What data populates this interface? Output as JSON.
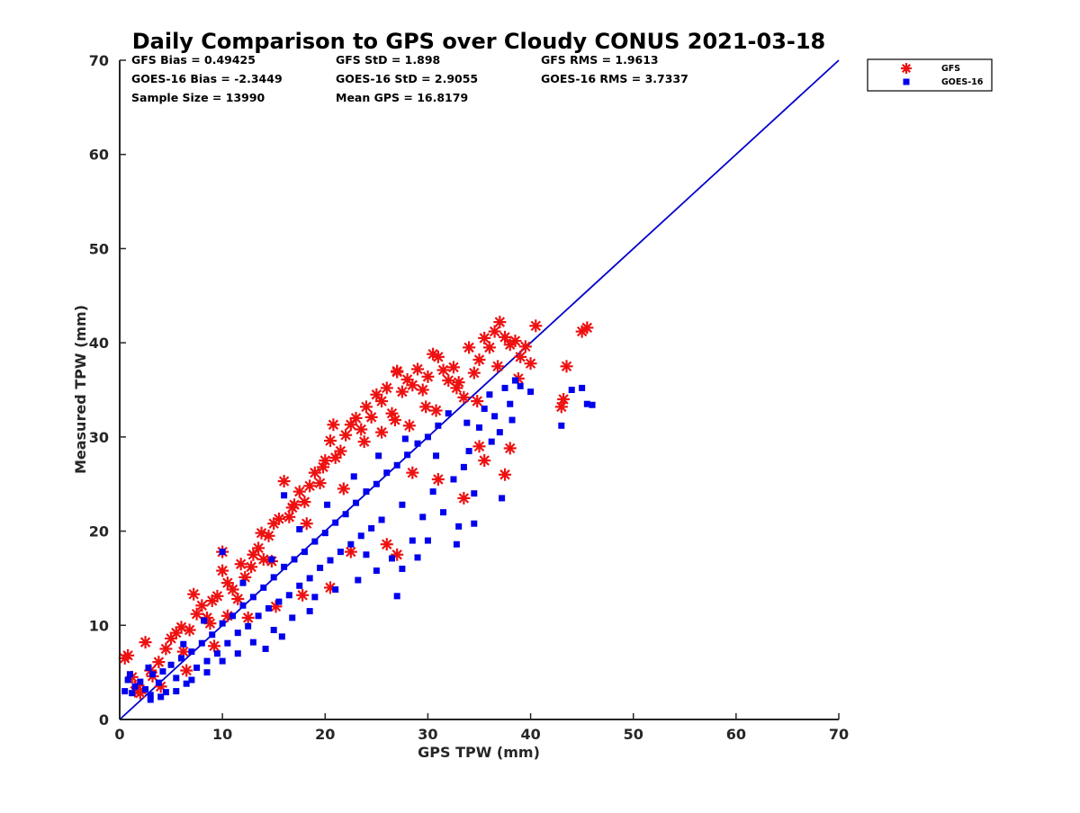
{
  "chart_data": {
    "type": "scatter",
    "title": "Daily Comparison to GPS over Cloudy CONUS 2021-03-18",
    "xlabel": "GPS TPW (mm)",
    "ylabel": "Measured TPW (mm)",
    "xlim": [
      0,
      70
    ],
    "ylim": [
      0,
      70
    ],
    "xticks": [
      0,
      10,
      20,
      30,
      40,
      50,
      60,
      70
    ],
    "yticks": [
      0,
      10,
      20,
      30,
      40,
      50,
      60,
      70
    ],
    "grid": false,
    "legend_position": "outside-top-right",
    "stats": [
      [
        "GFS Bias = 0.49425",
        "GFS StD = 1.898",
        "GFS RMS = 1.9613"
      ],
      [
        "GOES-16 Bias = -2.3449",
        "GOES-16 StD = 2.9055",
        "GOES-16 RMS = 3.7337"
      ],
      [
        "Sample Size = 13990",
        "Mean GPS = 16.8179",
        ""
      ]
    ],
    "reference_line": {
      "x": [
        0,
        70
      ],
      "y": [
        0,
        70
      ],
      "color": "#0000cc"
    },
    "series": [
      {
        "name": "GFS",
        "marker": "asterisk",
        "color": "#ee1111",
        "points": [
          [
            0.5,
            6.5
          ],
          [
            0.8,
            6.8
          ],
          [
            1.2,
            4.5
          ],
          [
            1.8,
            3.6
          ],
          [
            2.5,
            8.2
          ],
          [
            3.0,
            5.2
          ],
          [
            3.8,
            6.1
          ],
          [
            4.5,
            7.5
          ],
          [
            5.0,
            8.6
          ],
          [
            5.5,
            9.2
          ],
          [
            6.0,
            9.8
          ],
          [
            6.8,
            9.5
          ],
          [
            7.2,
            13.3
          ],
          [
            7.5,
            11.2
          ],
          [
            8.0,
            12.1
          ],
          [
            8.5,
            10.8
          ],
          [
            9.0,
            12.6
          ],
          [
            9.5,
            13.1
          ],
          [
            10.0,
            15.8
          ],
          [
            10.0,
            17.8
          ],
          [
            10.5,
            14.5
          ],
          [
            11.0,
            13.8
          ],
          [
            11.8,
            16.5
          ],
          [
            12.2,
            15.1
          ],
          [
            12.8,
            16.2
          ],
          [
            13.0,
            17.5
          ],
          [
            13.5,
            18.2
          ],
          [
            14.0,
            17.0
          ],
          [
            14.5,
            19.5
          ],
          [
            15.0,
            20.8
          ],
          [
            15.5,
            21.3
          ],
          [
            16.0,
            25.3
          ],
          [
            16.5,
            21.5
          ],
          [
            17.0,
            22.8
          ],
          [
            17.5,
            24.2
          ],
          [
            18.0,
            23.1
          ],
          [
            18.5,
            24.8
          ],
          [
            19.0,
            26.2
          ],
          [
            19.5,
            25.1
          ],
          [
            20.0,
            27.5
          ],
          [
            20.5,
            29.6
          ],
          [
            20.8,
            31.3
          ],
          [
            21.0,
            27.8
          ],
          [
            21.5,
            28.5
          ],
          [
            22.0,
            30.2
          ],
          [
            22.5,
            31.3
          ],
          [
            23.0,
            32.0
          ],
          [
            23.5,
            30.8
          ],
          [
            24.0,
            33.2
          ],
          [
            24.5,
            32.1
          ],
          [
            25.0,
            34.5
          ],
          [
            25.5,
            33.8
          ],
          [
            26.0,
            35.2
          ],
          [
            26.5,
            32.5
          ],
          [
            27.0,
            36.9
          ],
          [
            27.0,
            37.0
          ],
          [
            27.5,
            34.8
          ],
          [
            28.0,
            36.1
          ],
          [
            28.5,
            35.5
          ],
          [
            29.0,
            37.2
          ],
          [
            29.5,
            35.0
          ],
          [
            30.0,
            36.4
          ],
          [
            30.5,
            38.8
          ],
          [
            31.0,
            38.5
          ],
          [
            31.5,
            37.1
          ],
          [
            32.0,
            36.0
          ],
          [
            32.5,
            37.4
          ],
          [
            33.0,
            35.8
          ],
          [
            33.5,
            34.2
          ],
          [
            34.0,
            39.5
          ],
          [
            34.5,
            36.8
          ],
          [
            35.0,
            38.2
          ],
          [
            35.5,
            40.5
          ],
          [
            36.0,
            39.5
          ],
          [
            36.5,
            41.2
          ],
          [
            37.0,
            42.2
          ],
          [
            37.5,
            40.6
          ],
          [
            38.0,
            39.8
          ],
          [
            38.5,
            40.2
          ],
          [
            39.0,
            38.5
          ],
          [
            39.5,
            39.6
          ],
          [
            40.5,
            41.8
          ],
          [
            43.5,
            37.5
          ],
          [
            43.2,
            34.0
          ],
          [
            43.0,
            33.2
          ],
          [
            45.0,
            41.2
          ],
          [
            45.5,
            41.6
          ],
          [
            37.5,
            26.0
          ],
          [
            38.0,
            28.8
          ],
          [
            35.5,
            27.5
          ],
          [
            35.0,
            29.0
          ],
          [
            33.5,
            23.5
          ],
          [
            31.0,
            25.5
          ],
          [
            28.5,
            26.2
          ],
          [
            27.0,
            17.5
          ],
          [
            26.0,
            18.6
          ],
          [
            22.5,
            17.8
          ],
          [
            20.5,
            14.0
          ],
          [
            10.5,
            11.0
          ],
          [
            17.8,
            13.2
          ],
          [
            15.2,
            12.0
          ],
          [
            12.5,
            10.8
          ],
          [
            9.2,
            7.8
          ],
          [
            6.5,
            5.2
          ],
          [
            4.0,
            3.5
          ],
          [
            2.0,
            2.8
          ],
          [
            13.8,
            19.8
          ],
          [
            16.8,
            22.5
          ],
          [
            19.8,
            26.8
          ],
          [
            23.8,
            29.5
          ],
          [
            26.8,
            31.8
          ],
          [
            29.8,
            33.2
          ],
          [
            32.8,
            35.2
          ],
          [
            34.8,
            33.8
          ],
          [
            36.8,
            37.5
          ],
          [
            38.8,
            36.2
          ],
          [
            40.0,
            37.8
          ],
          [
            25.5,
            30.5
          ],
          [
            28.2,
            31.2
          ],
          [
            30.8,
            32.8
          ],
          [
            21.8,
            24.5
          ],
          [
            18.2,
            20.8
          ],
          [
            14.8,
            16.8
          ],
          [
            11.5,
            12.8
          ],
          [
            8.8,
            10.2
          ],
          [
            6.2,
            7.2
          ],
          [
            3.2,
            4.6
          ],
          [
            1.5,
            3.0
          ]
        ]
      },
      {
        "name": "GOES-16",
        "marker": "square",
        "color": "#0000ee",
        "points": [
          [
            0.5,
            3.0
          ],
          [
            0.8,
            4.2
          ],
          [
            1.2,
            2.8
          ],
          [
            1.5,
            3.5
          ],
          [
            2.0,
            4.0
          ],
          [
            2.5,
            3.2
          ],
          [
            3.0,
            2.6
          ],
          [
            3.2,
            4.8
          ],
          [
            3.8,
            3.9
          ],
          [
            4.2,
            5.1
          ],
          [
            4.5,
            2.9
          ],
          [
            5.0,
            5.8
          ],
          [
            5.5,
            4.4
          ],
          [
            6.0,
            6.5
          ],
          [
            6.5,
            3.8
          ],
          [
            7.0,
            7.2
          ],
          [
            7.5,
            5.5
          ],
          [
            8.0,
            8.1
          ],
          [
            8.5,
            6.2
          ],
          [
            9.0,
            9.0
          ],
          [
            9.5,
            7.0
          ],
          [
            10.0,
            10.2
          ],
          [
            10.0,
            17.8
          ],
          [
            10.5,
            8.1
          ],
          [
            11.0,
            11.0
          ],
          [
            11.5,
            9.2
          ],
          [
            12.0,
            12.1
          ],
          [
            12.5,
            9.9
          ],
          [
            13.0,
            13.0
          ],
          [
            13.5,
            11.0
          ],
          [
            14.0,
            14.0
          ],
          [
            14.2,
            7.5
          ],
          [
            14.5,
            11.8
          ],
          [
            15.0,
            15.1
          ],
          [
            15.5,
            12.5
          ],
          [
            15.8,
            8.8
          ],
          [
            16.0,
            16.2
          ],
          [
            16.5,
            13.2
          ],
          [
            17.0,
            17.0
          ],
          [
            17.5,
            14.2
          ],
          [
            18.0,
            17.8
          ],
          [
            18.5,
            15.0
          ],
          [
            19.0,
            18.9
          ],
          [
            19.5,
            16.1
          ],
          [
            20.0,
            19.8
          ],
          [
            20.5,
            16.9
          ],
          [
            21.0,
            20.9
          ],
          [
            21.5,
            17.8
          ],
          [
            22.0,
            21.8
          ],
          [
            22.5,
            18.6
          ],
          [
            23.0,
            23.0
          ],
          [
            23.5,
            19.5
          ],
          [
            24.0,
            24.2
          ],
          [
            24.5,
            20.3
          ],
          [
            25.0,
            25.0
          ],
          [
            25.5,
            21.2
          ],
          [
            26.0,
            26.2
          ],
          [
            26.5,
            17.1
          ],
          [
            27.0,
            27.0
          ],
          [
            27.0,
            13.1
          ],
          [
            27.5,
            22.8
          ],
          [
            28.0,
            28.1
          ],
          [
            28.5,
            19.0
          ],
          [
            29.0,
            29.3
          ],
          [
            29.5,
            21.5
          ],
          [
            30.0,
            30.0
          ],
          [
            30.5,
            24.2
          ],
          [
            31.0,
            31.2
          ],
          [
            31.5,
            22.0
          ],
          [
            32.0,
            32.5
          ],
          [
            32.5,
            25.5
          ],
          [
            33.0,
            20.5
          ],
          [
            33.5,
            26.8
          ],
          [
            34.0,
            28.5
          ],
          [
            34.5,
            24.0
          ],
          [
            35.0,
            31.0
          ],
          [
            35.5,
            33.0
          ],
          [
            36.0,
            34.5
          ],
          [
            36.5,
            32.2
          ],
          [
            37.0,
            30.5
          ],
          [
            37.5,
            35.2
          ],
          [
            38.0,
            33.5
          ],
          [
            38.5,
            36.0
          ],
          [
            39.0,
            35.4
          ],
          [
            40.0,
            34.8
          ],
          [
            43.0,
            31.2
          ],
          [
            44.0,
            35.0
          ],
          [
            45.0,
            35.2
          ],
          [
            45.5,
            33.5
          ],
          [
            46.0,
            33.4
          ],
          [
            37.2,
            23.5
          ],
          [
            34.5,
            20.8
          ],
          [
            32.8,
            18.6
          ],
          [
            30.0,
            19.0
          ],
          [
            29.0,
            17.2
          ],
          [
            27.5,
            16.0
          ],
          [
            25.0,
            15.8
          ],
          [
            23.2,
            14.8
          ],
          [
            21.0,
            13.8
          ],
          [
            18.5,
            11.5
          ],
          [
            16.8,
            10.8
          ],
          [
            15.0,
            9.5
          ],
          [
            13.0,
            8.2
          ],
          [
            11.5,
            7.0
          ],
          [
            10.0,
            6.2
          ],
          [
            8.5,
            5.0
          ],
          [
            7.0,
            4.2
          ],
          [
            5.5,
            3.0
          ],
          [
            4.0,
            2.4
          ],
          [
            3.0,
            2.1
          ],
          [
            12.0,
            14.5
          ],
          [
            14.8,
            17.0
          ],
          [
            17.5,
            20.2
          ],
          [
            20.2,
            22.8
          ],
          [
            22.8,
            25.8
          ],
          [
            25.2,
            28.0
          ],
          [
            27.8,
            29.8
          ],
          [
            30.8,
            28.0
          ],
          [
            33.8,
            31.5
          ],
          [
            36.2,
            29.5
          ],
          [
            38.2,
            31.8
          ],
          [
            6.2,
            8.0
          ],
          [
            8.2,
            10.5
          ],
          [
            2.8,
            5.5
          ],
          [
            1.0,
            4.8
          ],
          [
            24.0,
            17.5
          ],
          [
            19.0,
            13.0
          ],
          [
            16.0,
            23.8
          ]
        ]
      }
    ]
  }
}
